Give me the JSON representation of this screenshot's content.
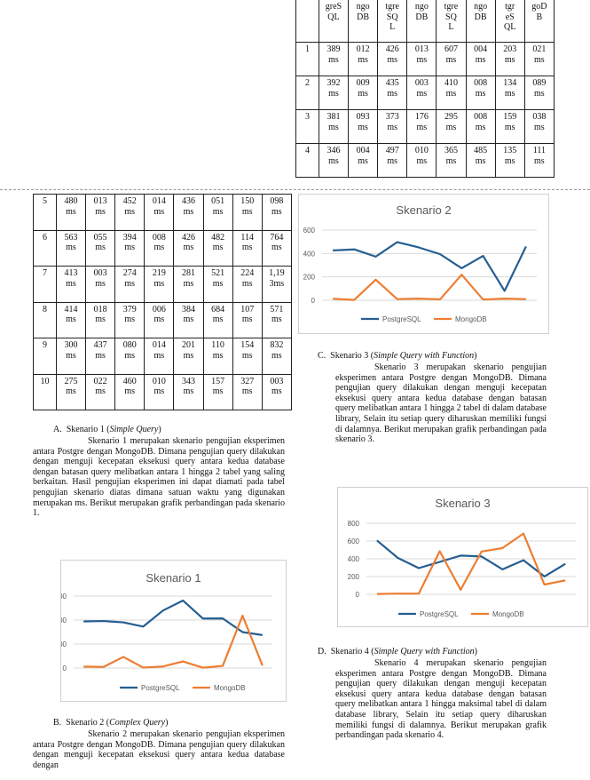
{
  "table_top": {
    "header": [
      "",
      "greS QL",
      "ngo DB",
      "tgre SQ L",
      "ngo DB",
      "tgre SQ L",
      "ngo DB",
      "tgr eS QL",
      "goD B"
    ],
    "rows": [
      [
        "1",
        "389 ms",
        "012 ms",
        "426 ms",
        "013 ms",
        "607 ms",
        "004 ms",
        "203 ms",
        "021 ms"
      ],
      [
        "2",
        "392 ms",
        "009 ms",
        "435 ms",
        "003 ms",
        "410 ms",
        "008 ms",
        "134 ms",
        "089 ms"
      ],
      [
        "3",
        "381 ms",
        "093 ms",
        "373 ms",
        "176 ms",
        "295 ms",
        "008 ms",
        "159 ms",
        "038 ms"
      ],
      [
        "4",
        "346 ms",
        "004 ms",
        "497 ms",
        "010 ms",
        "365 ms",
        "485 ms",
        "135 ms",
        "111 ms"
      ]
    ]
  },
  "table_left": {
    "rows": [
      [
        "5",
        "480 ms",
        "013 ms",
        "452 ms",
        "014 ms",
        "436 ms",
        "051 ms",
        "150 ms",
        "098 ms"
      ],
      [
        "6",
        "563 ms",
        "055 ms",
        "394 ms",
        "008 ms",
        "426 ms",
        "482 ms",
        "114 ms",
        "764 ms"
      ],
      [
        "7",
        "413 ms",
        "003 ms",
        "274 ms",
        "219 ms",
        "281 ms",
        "521 ms",
        "224 ms",
        "1,19 3ms"
      ],
      [
        "8",
        "414 ms",
        "018 ms",
        "379 ms",
        "006 ms",
        "384 ms",
        "684 ms",
        "107 ms",
        "571 ms"
      ],
      [
        "9",
        "300 ms",
        "437 ms",
        "080 ms",
        "014 ms",
        "201 ms",
        "110 ms",
        "154 ms",
        "832 ms"
      ],
      [
        "10",
        "275 ms",
        "022 ms",
        "460 ms",
        "010 ms",
        "343 ms",
        "157 ms",
        "327 ms",
        "003 ms"
      ]
    ]
  },
  "sections": {
    "a": {
      "marker": "A.",
      "title_prefix": "Skenario 1 (",
      "title_italic": "Simple Query",
      "title_suffix": ")",
      "first": "Skenario 1 merupakan skenario",
      "body": "pengujian eksperimen antara Postgre dengan MongoDB. Dimana pengujian query dilakukan dengan menguji kecepatan eksekusi query antara kedua database dengan batasan query melibatkan antara 1 hingga 2 tabel yang saling berkaitan. Hasil pengujian eksperimen ini dapat diamati pada tabel pengujian skenario diatas dimana satuan waktu yang digunakan merupakan ms. Berikut merupakan grafik perbandingan pada skenario 1."
    },
    "b": {
      "marker": "B.",
      "title_prefix": "Skenario 2 (",
      "title_italic": "Complex Query",
      "title_suffix": ")",
      "first": "Skenario 2 merupakan skenario",
      "body": "pengujian eksperimen antara Postgre dengan MongoDB. Dimana pengujian query dilakukan dengan menguji kecepatan eksekusi query antara kedua database dengan"
    },
    "c": {
      "marker": "C.",
      "title_prefix": "Skenario 3 (",
      "title_italic": "Simple Query with Function",
      "title_suffix": ")",
      "first": "Skenario 3 merupakan skenario",
      "body": "pengujian eksperimen antara Postgre dengan MongoDB. Dimana pengujian query dilakukan dengan menguji kecepatan eksekusi query antara kedua database dengan batasan query melibatkan antara 1 hingga 2 tabel di dalam database library, Selain itu setiap query diharuskan memiliki fungsi di dalamnya. Berikut merupakan grafik perbandingan pada skenario 3."
    },
    "d": {
      "marker": "D.",
      "title_prefix": "Skenario 4 (",
      "title_italic": "Simple Query with Function",
      "title_suffix": ")",
      "first": "Skenario 4 merupakan skenario",
      "body": "pengujian eksperimen antara Postgre dengan MongoDB. Dimana pengujian query dilakukan dengan menguji kecepatan eksekusi query antara kedua database dengan batasan query melibatkan antara 1 hingga maksimal tabel di dalam database library, Selain itu setiap query diharuskan memiliki fungsi di dalamnya. Berikut merupakan grafik perbandingan pada skenario 4."
    }
  },
  "colors": {
    "postgresql": "#255E91",
    "mongodb": "#ED7D31",
    "grid": "#D9D9D9"
  },
  "chart_data": [
    {
      "type": "line",
      "title": "Skenario 1",
      "x": [
        1,
        2,
        3,
        4,
        5,
        6,
        7,
        8,
        9,
        10
      ],
      "ylim": [
        0,
        600
      ],
      "yticks": [
        0,
        200,
        400,
        600
      ],
      "grid": true,
      "legend": "bottom",
      "series": [
        {
          "name": "PostgreSQL",
          "values": [
            389,
            392,
            381,
            346,
            480,
            563,
            413,
            414,
            300,
            275
          ]
        },
        {
          "name": "MongoDB",
          "values": [
            12,
            9,
            93,
            4,
            13,
            55,
            3,
            18,
            437,
            22
          ]
        }
      ]
    },
    {
      "type": "line",
      "title": "Skenario 2",
      "x": [
        1,
        2,
        3,
        4,
        5,
        6,
        7,
        8,
        9,
        10
      ],
      "ylim": [
        0,
        600
      ],
      "yticks": [
        0,
        200,
        400,
        600
      ],
      "grid": true,
      "legend": "bottom",
      "series": [
        {
          "name": "PostgreSQL",
          "values": [
            426,
            435,
            373,
            497,
            452,
            394,
            274,
            379,
            80,
            460
          ]
        },
        {
          "name": "MongoDB",
          "values": [
            13,
            3,
            176,
            10,
            14,
            8,
            219,
            6,
            14,
            10
          ]
        }
      ]
    },
    {
      "type": "line",
      "title": "Skenario 3",
      "x": [
        1,
        2,
        3,
        4,
        5,
        6,
        7,
        8,
        9,
        10
      ],
      "ylim": [
        0,
        800
      ],
      "yticks": [
        0,
        200,
        400,
        600,
        800
      ],
      "grid": true,
      "legend": "bottom",
      "series": [
        {
          "name": "PostgreSQL",
          "values": [
            607,
            410,
            295,
            365,
            436,
            426,
            281,
            384,
            201,
            343
          ]
        },
        {
          "name": "MongoDB",
          "values": [
            4,
            8,
            8,
            485,
            51,
            482,
            521,
            684,
            110,
            157
          ]
        }
      ]
    }
  ]
}
